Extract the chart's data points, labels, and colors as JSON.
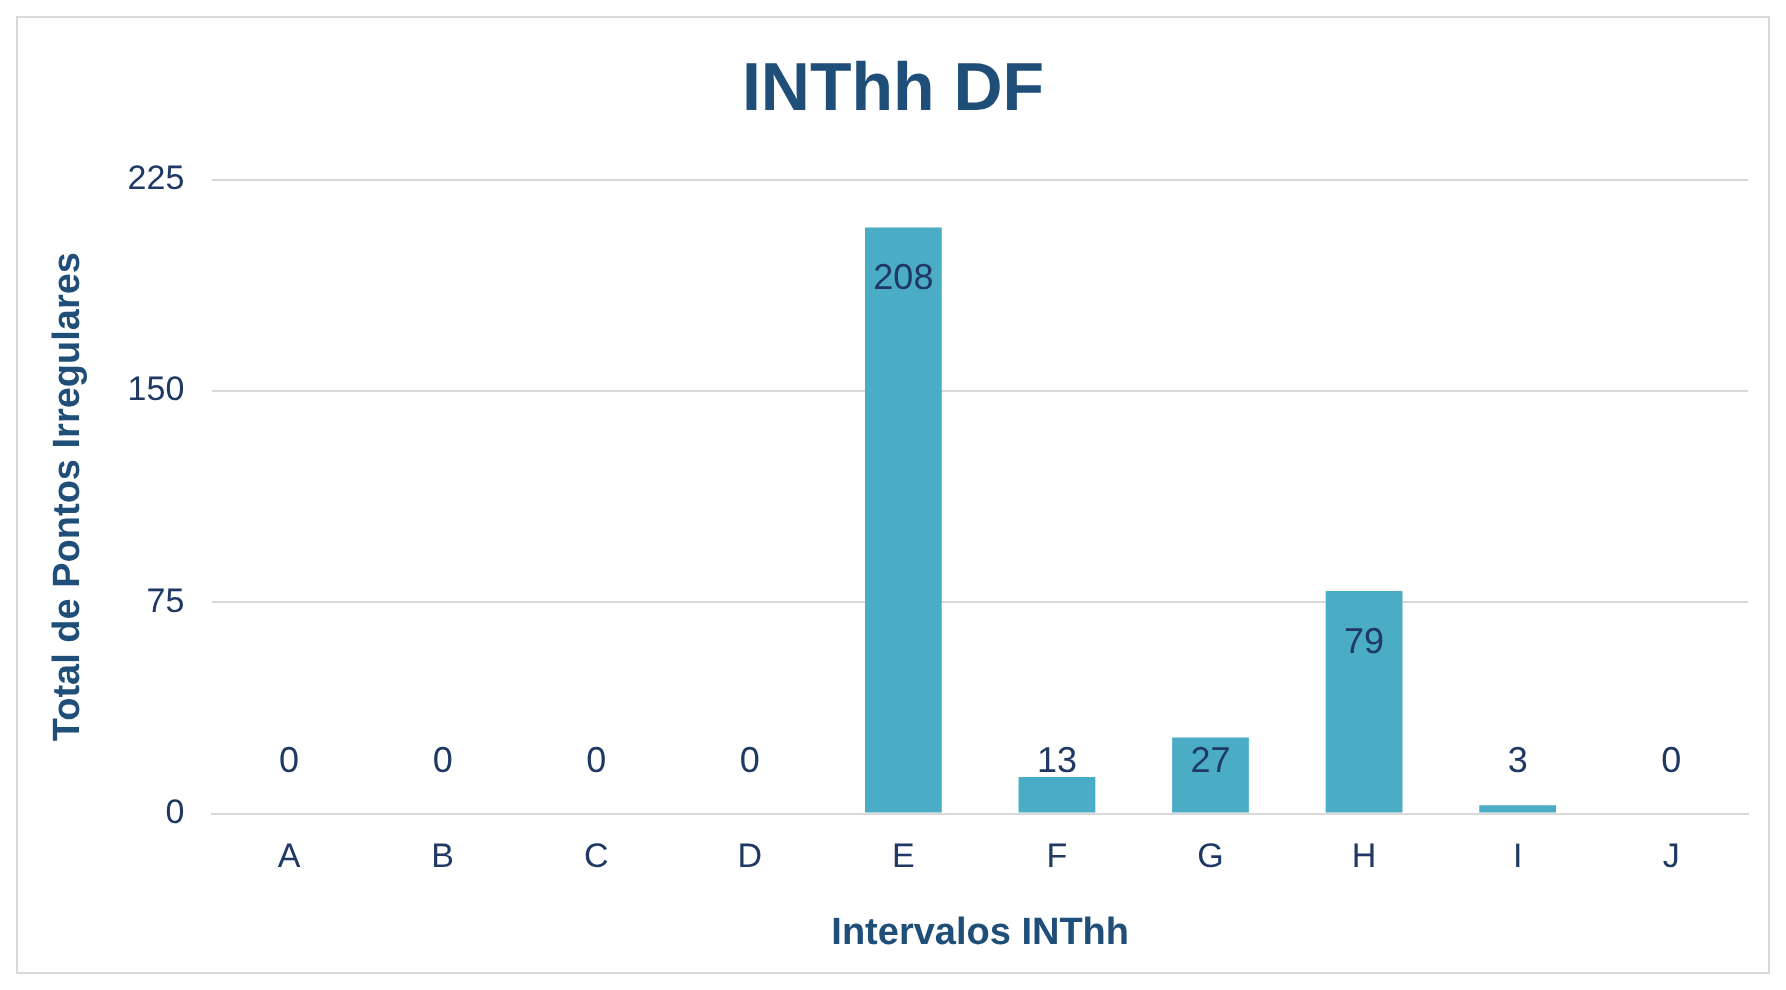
{
  "chart_data": {
    "type": "bar",
    "title": "INThh DF",
    "xlabel": "Intervalos INThh",
    "ylabel": "Total de Pontos Irregulares",
    "categories": [
      "A",
      "B",
      "C",
      "D",
      "E",
      "F",
      "G",
      "H",
      "I",
      "J"
    ],
    "values": [
      0,
      0,
      0,
      0,
      208,
      13,
      27,
      79,
      3,
      0
    ],
    "color": "#4bacc6",
    "ylim": [
      0,
      225
    ],
    "yticks": [
      0,
      75,
      150,
      225
    ],
    "grid": "y",
    "data_labels": true,
    "legend": false
  }
}
